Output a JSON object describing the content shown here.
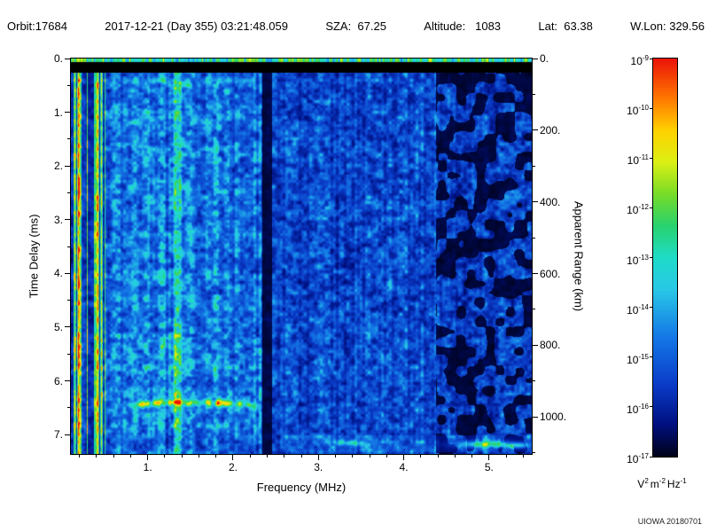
{
  "header": {
    "segments": [
      {
        "text": "Orbit:17684"
      },
      {
        "text": "2017-12-21 (Day 355) 03:21:48.059"
      },
      {
        "text": "SZA:  67.25"
      },
      {
        "text": "Altitude:   1083"
      },
      {
        "text": "Lat:  63.38"
      },
      {
        "text": "W.Lon: 329.56"
      }
    ]
  },
  "footer": {
    "credit": "UIOWA 20180701"
  },
  "chart_data": {
    "type": "heatmap",
    "title": "",
    "xlabel": "Frequency (MHz)",
    "ylabel_left": "Time Delay (ms)",
    "ylabel_right": "Apparent Range (km)",
    "xlim": [
      0.1,
      5.5
    ],
    "ylim": [
      0,
      7.36
    ],
    "x_ticks": [
      {
        "value": 1,
        "label": "1."
      },
      {
        "value": 2,
        "label": "2."
      },
      {
        "value": 3,
        "label": "3."
      },
      {
        "value": 4,
        "label": "4."
      },
      {
        "value": 5,
        "label": "5."
      }
    ],
    "x_minor_step": 0.2,
    "y_ticks": [
      {
        "value": 0,
        "label": "0."
      },
      {
        "value": 1,
        "label": "1."
      },
      {
        "value": 2,
        "label": "2."
      },
      {
        "value": 3,
        "label": "3."
      },
      {
        "value": 4,
        "label": "4."
      },
      {
        "value": 5,
        "label": "5."
      },
      {
        "value": 6,
        "label": "6."
      },
      {
        "value": 7,
        "label": "7."
      }
    ],
    "y_minor_step": 0.5,
    "right_axis": {
      "km_per_ms": 149.9,
      "minor_step_km": 100,
      "ticks": [
        {
          "km": 0,
          "label": "0."
        },
        {
          "km": 200,
          "label": "200."
        },
        {
          "km": 400,
          "label": "400."
        },
        {
          "km": 600,
          "label": "600."
        },
        {
          "km": 800,
          "label": "800."
        },
        {
          "km": 1000,
          "label": "1000."
        }
      ]
    },
    "colorbar": {
      "scale": "log",
      "exponents": [
        -9,
        -10,
        -11,
        -12,
        -13,
        -14,
        -15,
        -16,
        -17
      ],
      "units": [
        {
          "t": "V",
          "sup": "2"
        },
        {
          "t": "m",
          "sup": "-2"
        },
        {
          "t": "Hz",
          "sup": "-1"
        }
      ],
      "colormap_stops": [
        [
          0.0,
          "#000218"
        ],
        [
          0.08,
          "#001080"
        ],
        [
          0.18,
          "#0a3cc8"
        ],
        [
          0.3,
          "#1478e6"
        ],
        [
          0.42,
          "#28c8e6"
        ],
        [
          0.5,
          "#1edcc8"
        ],
        [
          0.58,
          "#28d26e"
        ],
        [
          0.66,
          "#78dc28"
        ],
        [
          0.74,
          "#dcf014"
        ],
        [
          0.82,
          "#ffd200"
        ],
        [
          0.9,
          "#ff7800"
        ],
        [
          1.0,
          "#eb1408"
        ]
      ]
    },
    "noise_seed": 20180701,
    "features": {
      "transmit_line": {
        "to_ms": 0.06,
        "level": 0.5
      },
      "blank_band": {
        "to_ms": 0.26
      },
      "active_region_max_mhz": 2.33,
      "weak_region_from_mhz": 4.38,
      "patch_threshold": 0.47,
      "low_band_stripes_to_mhz": 0.5,
      "interference_line": {
        "mhz": 1.35,
        "halfwidth_mhz": 0.03,
        "boost": 0.26
      },
      "dark_column": {
        "from_mhz": 2.34,
        "to_mhz": 2.46,
        "factor": 0.18
      },
      "echo_trace": {
        "from_mhz": 0.76,
        "to_mhz": 2.36,
        "delay_ms": 6.4,
        "dip_ms": 0.09,
        "center_mhz": 1.5,
        "half_span_mhz": 0.9,
        "sigma_ms": 0.06,
        "level": 0.4
      },
      "late_band": {
        "from_mhz": 2.55,
        "from_ms": 7.02,
        "to_ms": 7.33,
        "add": 0.05
      },
      "bright_blobs": [
        {
          "mhz": 4.95,
          "ms": 7.18,
          "w_mhz": 0.3,
          "h_ms": 0.06,
          "level": 0.42
        },
        {
          "mhz": 3.4,
          "ms": 7.16,
          "w_mhz": 0.15,
          "h_ms": 0.05,
          "level": 0.3
        },
        {
          "mhz": 5.35,
          "ms": 7.2,
          "w_mhz": 0.12,
          "h_ms": 0.05,
          "level": 0.3
        }
      ]
    }
  }
}
